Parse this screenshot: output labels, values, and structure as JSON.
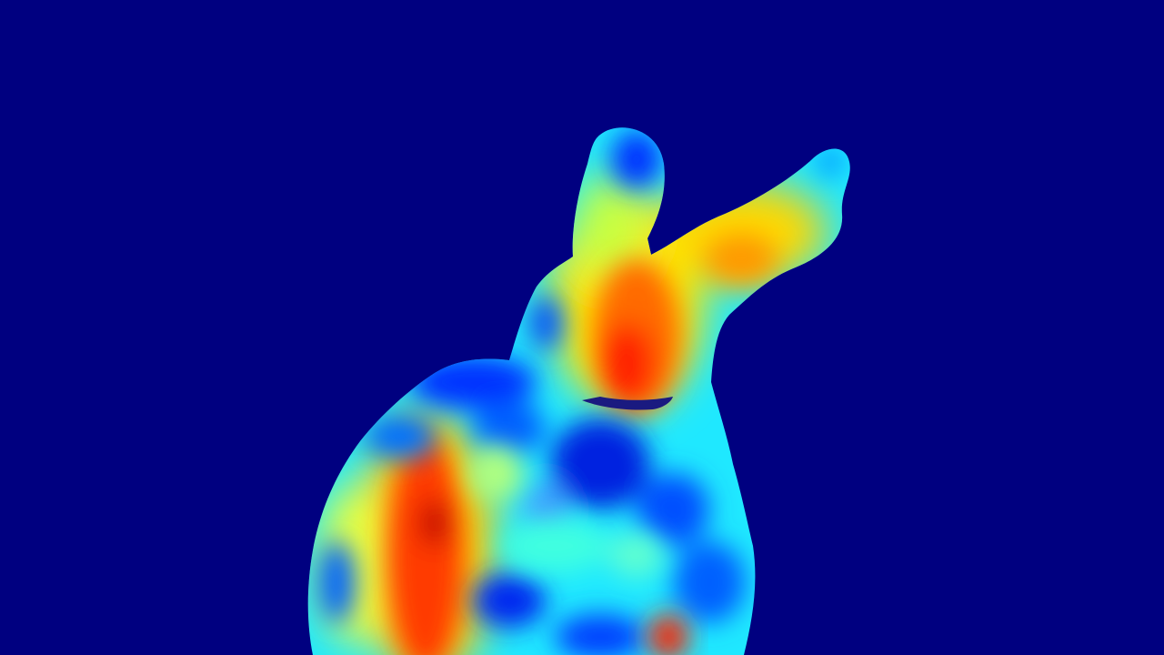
{
  "scene": {
    "background_color": "#000080",
    "colormap": "jet",
    "colormap_stops": [
      "#00007f",
      "#0000ff",
      "#0080ff",
      "#00ffff",
      "#80ff80",
      "#ffff00",
      "#ff8000",
      "#ff0000",
      "#7f0000"
    ],
    "object": "bunny-mesh-heatmap"
  }
}
